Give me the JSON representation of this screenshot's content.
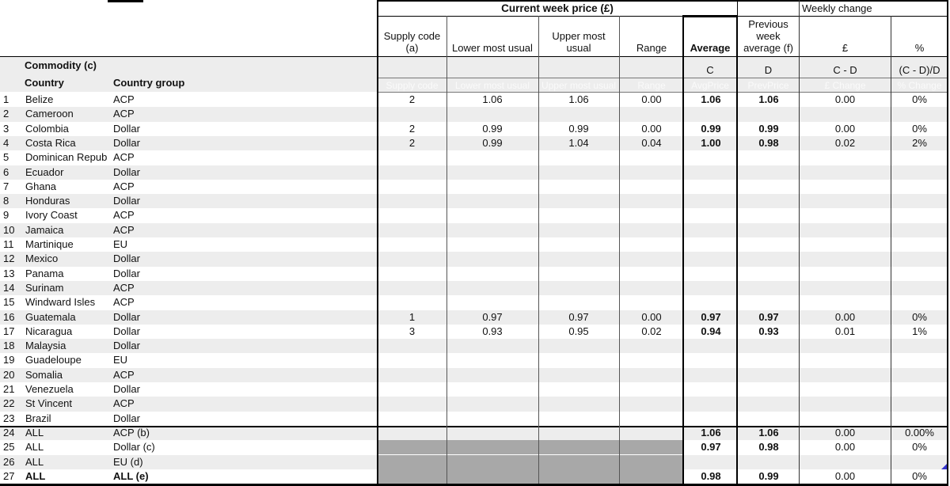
{
  "colors": {
    "stripe": "#ededed",
    "masked_block": "#a8a8a8",
    "comment_marker": "#3535cd"
  },
  "table": {
    "top_header": {
      "current_week": "Current week price (£)",
      "weekly_change": "Weekly change"
    },
    "left_header": {
      "commodity": "Commodity (c)",
      "country": "Country",
      "group": "Country group"
    },
    "columns": [
      {
        "id": "supply",
        "label": "Supply code\n(a)",
        "formula_label": "",
        "faint": "Supply code"
      },
      {
        "id": "lower",
        "label": "Lower most usual",
        "formula_label": "",
        "faint": "Lower most usual"
      },
      {
        "id": "upper",
        "label": "Upper most\nusual",
        "formula_label": "",
        "faint": "Upper most usual"
      },
      {
        "id": "range",
        "label": "Range",
        "formula_label": "",
        "faint": "Range"
      },
      {
        "id": "avg",
        "label": "Average",
        "formula_label": "C",
        "faint": "AvgPrice"
      },
      {
        "id": "prev",
        "label": "Previous\nweek\naverage (f)",
        "formula_label": "D",
        "faint": "PrevPrice"
      },
      {
        "id": "gbp",
        "label": "£",
        "formula_label": "C - D",
        "faint": "£ Change"
      },
      {
        "id": "pct",
        "label": "%",
        "formula_label": "(C - D)/D",
        "faint": "% Change"
      }
    ],
    "rows": [
      {
        "n": "1",
        "country": "Belize",
        "group": "ACP",
        "supply": "2",
        "lower": "1.06",
        "upper": "1.06",
        "range": "0.00",
        "avg": "1.06",
        "prev": "1.06",
        "gbp": "0.00",
        "pct": "0%",
        "masked": false,
        "bold": false
      },
      {
        "n": "2",
        "country": "Cameroon",
        "group": "ACP",
        "supply": "",
        "lower": "",
        "upper": "",
        "range": "",
        "avg": "",
        "prev": "",
        "gbp": "",
        "pct": "",
        "masked": false,
        "bold": false
      },
      {
        "n": "3",
        "country": "Colombia",
        "group": "Dollar",
        "supply": "2",
        "lower": "0.99",
        "upper": "0.99",
        "range": "0.00",
        "avg": "0.99",
        "prev": "0.99",
        "gbp": "0.00",
        "pct": "0%",
        "masked": false,
        "bold": false
      },
      {
        "n": "4",
        "country": "Costa Rica",
        "group": "Dollar",
        "supply": "2",
        "lower": "0.99",
        "upper": "1.04",
        "range": "0.04",
        "avg": "1.00",
        "prev": "0.98",
        "gbp": "0.02",
        "pct": "2%",
        "masked": false,
        "bold": false
      },
      {
        "n": "5",
        "country": "Dominican Repub",
        "group": "ACP",
        "supply": "",
        "lower": "",
        "upper": "",
        "range": "",
        "avg": "",
        "prev": "",
        "gbp": "",
        "pct": "",
        "masked": false,
        "bold": false
      },
      {
        "n": "6",
        "country": "Ecuador",
        "group": "Dollar",
        "supply": "",
        "lower": "",
        "upper": "",
        "range": "",
        "avg": "",
        "prev": "",
        "gbp": "",
        "pct": "",
        "masked": false,
        "bold": false
      },
      {
        "n": "7",
        "country": "Ghana",
        "group": "ACP",
        "supply": "",
        "lower": "",
        "upper": "",
        "range": "",
        "avg": "",
        "prev": "",
        "gbp": "",
        "pct": "",
        "masked": false,
        "bold": false
      },
      {
        "n": "8",
        "country": "Honduras",
        "group": "Dollar",
        "supply": "",
        "lower": "",
        "upper": "",
        "range": "",
        "avg": "",
        "prev": "",
        "gbp": "",
        "pct": "",
        "masked": false,
        "bold": false
      },
      {
        "n": "9",
        "country": "Ivory Coast",
        "group": "ACP",
        "supply": "",
        "lower": "",
        "upper": "",
        "range": "",
        "avg": "",
        "prev": "",
        "gbp": "",
        "pct": "",
        "masked": false,
        "bold": false
      },
      {
        "n": "10",
        "country": "Jamaica",
        "group": "ACP",
        "supply": "",
        "lower": "",
        "upper": "",
        "range": "",
        "avg": "",
        "prev": "",
        "gbp": "",
        "pct": "",
        "masked": false,
        "bold": false
      },
      {
        "n": "11",
        "country": "Martinique",
        "group": "EU",
        "supply": "",
        "lower": "",
        "upper": "",
        "range": "",
        "avg": "",
        "prev": "",
        "gbp": "",
        "pct": "",
        "masked": false,
        "bold": false
      },
      {
        "n": "12",
        "country": "Mexico",
        "group": "Dollar",
        "supply": "",
        "lower": "",
        "upper": "",
        "range": "",
        "avg": "",
        "prev": "",
        "gbp": "",
        "pct": "",
        "masked": false,
        "bold": false
      },
      {
        "n": "13",
        "country": "Panama",
        "group": "Dollar",
        "supply": "",
        "lower": "",
        "upper": "",
        "range": "",
        "avg": "",
        "prev": "",
        "gbp": "",
        "pct": "",
        "masked": false,
        "bold": false
      },
      {
        "n": "14",
        "country": "Surinam",
        "group": "ACP",
        "supply": "",
        "lower": "",
        "upper": "",
        "range": "",
        "avg": "",
        "prev": "",
        "gbp": "",
        "pct": "",
        "masked": false,
        "bold": false
      },
      {
        "n": "15",
        "country": "Windward Isles",
        "group": "ACP",
        "supply": "",
        "lower": "",
        "upper": "",
        "range": "",
        "avg": "",
        "prev": "",
        "gbp": "",
        "pct": "",
        "masked": false,
        "bold": false
      },
      {
        "n": "16",
        "country": "Guatemala",
        "group": "Dollar",
        "supply": "1",
        "lower": "0.97",
        "upper": "0.97",
        "range": "0.00",
        "avg": "0.97",
        "prev": "0.97",
        "gbp": "0.00",
        "pct": "0%",
        "masked": false,
        "bold": false
      },
      {
        "n": "17",
        "country": "Nicaragua",
        "group": "Dollar",
        "supply": "3",
        "lower": "0.93",
        "upper": "0.95",
        "range": "0.02",
        "avg": "0.94",
        "prev": "0.93",
        "gbp": "0.01",
        "pct": "1%",
        "masked": false,
        "bold": false
      },
      {
        "n": "18",
        "country": "Malaysia",
        "group": "Dollar",
        "supply": "",
        "lower": "",
        "upper": "",
        "range": "",
        "avg": "",
        "prev": "",
        "gbp": "",
        "pct": "",
        "masked": false,
        "bold": false
      },
      {
        "n": "19",
        "country": "Guadeloupe",
        "group": "EU",
        "supply": "",
        "lower": "",
        "upper": "",
        "range": "",
        "avg": "",
        "prev": "",
        "gbp": "",
        "pct": "",
        "masked": false,
        "bold": false
      },
      {
        "n": "20",
        "country": "Somalia",
        "group": "ACP",
        "supply": "",
        "lower": "",
        "upper": "",
        "range": "",
        "avg": "",
        "prev": "",
        "gbp": "",
        "pct": "",
        "masked": false,
        "bold": false
      },
      {
        "n": "21",
        "country": "Venezuela",
        "group": "Dollar",
        "supply": "",
        "lower": "",
        "upper": "",
        "range": "",
        "avg": "",
        "prev": "",
        "gbp": "",
        "pct": "",
        "masked": false,
        "bold": false
      },
      {
        "n": "22",
        "country": "St Vincent",
        "group": "ACP",
        "supply": "",
        "lower": "",
        "upper": "",
        "range": "",
        "avg": "",
        "prev": "",
        "gbp": "",
        "pct": "",
        "masked": false,
        "bold": false
      },
      {
        "n": "23",
        "country": "Brazil",
        "group": "Dollar",
        "supply": "",
        "lower": "",
        "upper": "",
        "range": "",
        "avg": "",
        "prev": "",
        "gbp": "",
        "pct": "",
        "masked": false,
        "bold": false
      },
      {
        "n": "24",
        "country": "ALL",
        "group": "ACP (b)",
        "supply": "",
        "lower": "",
        "upper": "",
        "range": "",
        "avg": "1.06",
        "prev": "1.06",
        "gbp": "0.00",
        "pct": "0.00%",
        "masked": false,
        "bold": false
      },
      {
        "n": "25",
        "country": "ALL",
        "group": "Dollar (c)",
        "supply": "",
        "lower": "",
        "upper": "",
        "range": "",
        "avg": "0.97",
        "prev": "0.98",
        "gbp": "0.00",
        "pct": "0%",
        "masked": true,
        "bold": false
      },
      {
        "n": "26",
        "country": "ALL",
        "group": "EU (d)",
        "supply": "",
        "lower": "",
        "upper": "",
        "range": "",
        "avg": "",
        "prev": "",
        "gbp": "",
        "pct": "",
        "masked": true,
        "bold": false
      },
      {
        "n": "27",
        "country": "ALL",
        "group": "ALL (e)",
        "supply": "",
        "lower": "",
        "upper": "",
        "range": "",
        "avg": "0.98",
        "prev": "0.99",
        "gbp": "0.00",
        "pct": "0%",
        "masked": true,
        "bold": true
      }
    ]
  }
}
